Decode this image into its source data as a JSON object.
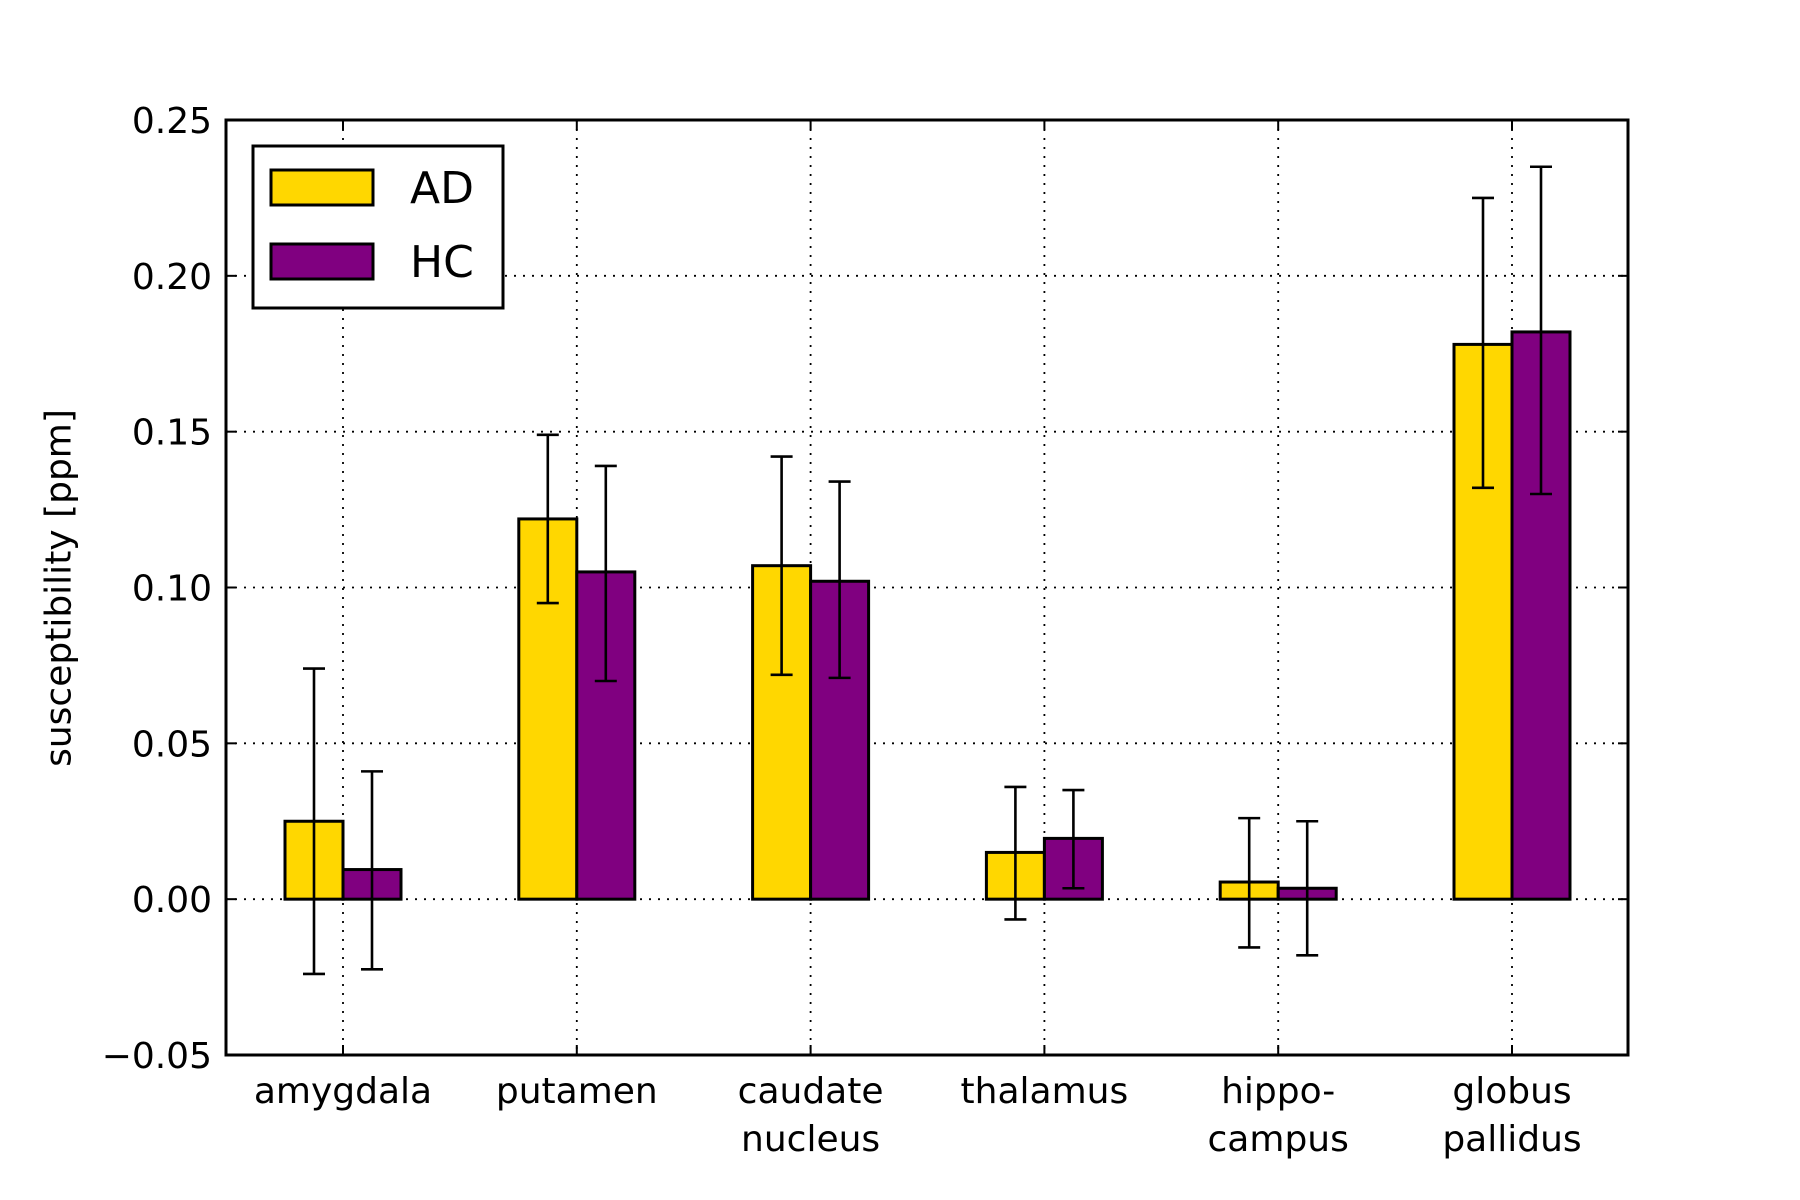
{
  "chart_data": {
    "type": "bar",
    "title": "",
    "xlabel": "",
    "ylabel": "susceptibility [ppm]",
    "ylim": [
      -0.05,
      0.25
    ],
    "yticks": [
      "−0.05",
      "0.00",
      "0.05",
      "0.10",
      "0.15",
      "0.20",
      "0.25"
    ],
    "ytick_values": [
      -0.05,
      0.0,
      0.05,
      0.1,
      0.15,
      0.2,
      0.25
    ],
    "grid": true,
    "legend_position": "top-left",
    "categories": [
      [
        "amygdala"
      ],
      [
        "putamen"
      ],
      [
        "caudate",
        "nucleus"
      ],
      [
        "thalamus"
      ],
      [
        "hippo-",
        "campus"
      ],
      [
        "globus",
        "pallidus"
      ]
    ],
    "series": [
      {
        "name": "AD",
        "color": "#FFD700",
        "values": [
          0.025,
          0.122,
          0.107,
          0.015,
          0.0055,
          0.178
        ],
        "err_low": [
          -0.024,
          0.095,
          0.072,
          -0.0065,
          -0.0155,
          0.132
        ],
        "err_high": [
          0.074,
          0.149,
          0.142,
          0.036,
          0.026,
          0.225
        ]
      },
      {
        "name": "HC",
        "color": "#800080",
        "values": [
          0.0095,
          0.105,
          0.102,
          0.0195,
          0.0035,
          0.182
        ],
        "err_low": [
          -0.0225,
          0.07,
          0.071,
          0.0035,
          -0.018,
          0.13
        ],
        "err_high": [
          0.041,
          0.139,
          0.134,
          0.035,
          0.025,
          0.235
        ]
      }
    ]
  }
}
